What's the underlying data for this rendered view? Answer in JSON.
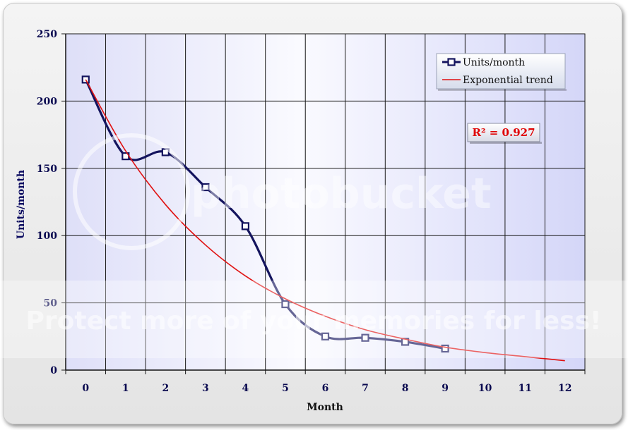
{
  "chart_data": {
    "type": "line",
    "xlabel": "Month",
    "ylabel": "Units/month",
    "xlim": [
      0,
      12
    ],
    "ylim": [
      0,
      250
    ],
    "x_ticks": [
      0,
      1,
      2,
      3,
      4,
      5,
      6,
      7,
      8,
      9,
      10,
      11,
      12
    ],
    "y_ticks": [
      0,
      50,
      100,
      150,
      200,
      250
    ],
    "grid": true,
    "legend": "top-right",
    "series": [
      {
        "name": "Units/month",
        "color": "#14145e",
        "x": [
          0,
          1,
          2,
          3,
          4,
          5,
          6,
          7,
          8,
          9
        ],
        "y": [
          216,
          159,
          162,
          136,
          107,
          49,
          25,
          24,
          21,
          16
        ]
      },
      {
        "name": "Exponential trend",
        "color": "#e01010",
        "x": [
          0,
          1,
          2,
          3,
          4,
          5,
          6,
          7,
          8,
          9,
          10,
          11,
          12
        ],
        "y": [
          216,
          163,
          123,
          93,
          70,
          53,
          40,
          30,
          23,
          17,
          13,
          10,
          7
        ]
      }
    ],
    "annotation": "R² = 0.927"
  },
  "watermark": {
    "text": "Protect more of your memories for less!",
    "brand": "photobucket"
  }
}
